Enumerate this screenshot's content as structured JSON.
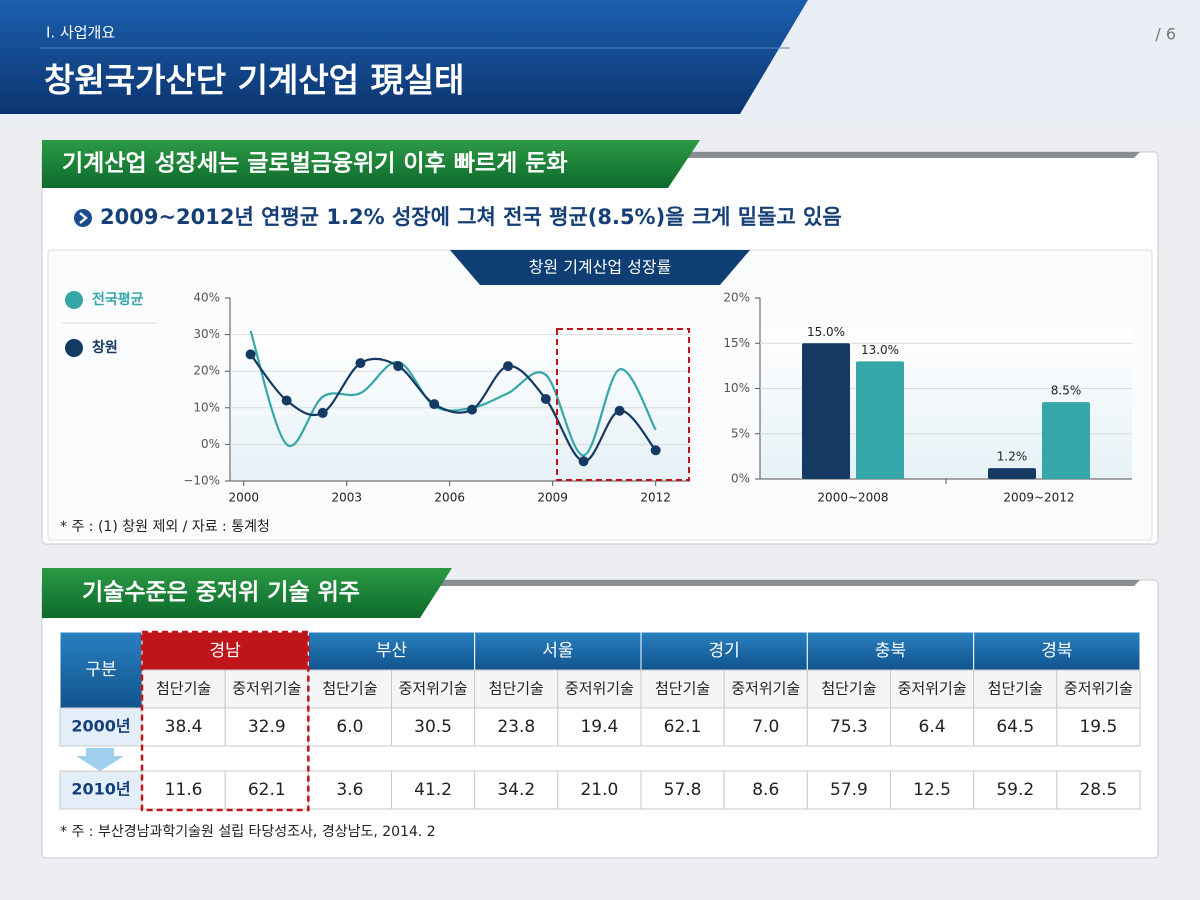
{
  "header": {
    "section": "Ⅰ. 사업개요",
    "page": "/ 6",
    "title": "창원국가산단 기계산업 現실태"
  },
  "section1": {
    "heading": "기계산업 성장세는 글로벌금융위기 이후 빠르게 둔화",
    "bullet": "2009~2012년 연평균 1.2% 성장에 그쳐 전국 평균(8.5%)을 크게 밑돌고 있음",
    "chart_title": "창원 기계산업 성장률",
    "note": "* 주 : (1) 창원 제외 / 자료 : 통계청"
  },
  "chart_data": [
    {
      "type": "line",
      "x": [
        2000.2,
        2001.25,
        2002.3,
        2003.4,
        2004.5,
        2005.55,
        2006.65,
        2007.7,
        2008.8,
        2009.9,
        2010.95,
        2012.0
      ],
      "series": [
        {
          "name": "전국평균",
          "color": "#35a7a8",
          "values": [
            31,
            0,
            13,
            14,
            22.5,
            10.5,
            10,
            14,
            19,
            -3,
            20.5,
            4
          ]
        },
        {
          "name": "창원",
          "color": "#143a63",
          "values": [
            24.6,
            12,
            8.6,
            22.2,
            21.4,
            11,
            9.5,
            21.4,
            12.4,
            -4.6,
            9.2,
            -1.6
          ]
        }
      ],
      "xlim": [
        1999.6,
        2013
      ],
      "xticks": [
        2000,
        2003,
        2006,
        2009,
        2012
      ],
      "ylim": [
        -10,
        40
      ],
      "yticks": [
        {
          "value": -10,
          "label": "−10%"
        },
        {
          "value": 0,
          "label": "0%"
        },
        {
          "value": 10,
          "label": "10%"
        },
        {
          "value": 20,
          "label": "20%"
        },
        {
          "value": 30,
          "label": "30%"
        },
        {
          "value": 40,
          "label": "40%"
        }
      ],
      "grid": true
    },
    {
      "type": "bar",
      "categories": [
        "2000~2008",
        "2009~2012"
      ],
      "series": [
        {
          "color": "#143a63",
          "values": [
            15,
            1.2
          ],
          "value_labels": [
            "15.0%",
            "1.2%"
          ]
        },
        {
          "color": "#35a7a8",
          "values": [
            13,
            8.5
          ],
          "value_labels": [
            "13.0%",
            "8.5%"
          ]
        }
      ],
      "ylim": [
        0,
        20
      ],
      "yticks": [
        {
          "value": 0,
          "label": "0%"
        },
        {
          "value": 5,
          "label": "5%"
        },
        {
          "value": 10,
          "label": "10%"
        },
        {
          "value": 15,
          "label": "15%"
        },
        {
          "value": 20,
          "label": "20%"
        }
      ],
      "grid": true
    }
  ],
  "section2": {
    "heading": "기술수준은 중저위 기술 위주",
    "note": "* 주 : 부산경남과학기술원 설립 타당성조사, 경상남도, 2014. 2"
  },
  "table": {
    "corner": "구분",
    "regions": [
      "경남",
      "부산",
      "서울",
      "경기",
      "충북",
      "경북"
    ],
    "subheaders": [
      "첨단기술",
      "중저위기술"
    ],
    "rows": [
      {
        "label": "2000년",
        "values": [
          "38.4",
          "32.9",
          "6.0",
          "30.5",
          "23.8",
          "19.4",
          "62.1",
          "7.0",
          "75.3",
          "6.4",
          "64.5",
          "19.5"
        ]
      },
      {
        "label": "2010년",
        "values": [
          "11.6",
          "62.1",
          "3.6",
          "41.2",
          "34.2",
          "21.0",
          "57.8",
          "8.6",
          "57.9",
          "12.5",
          "59.2",
          "28.5"
        ]
      }
    ]
  }
}
